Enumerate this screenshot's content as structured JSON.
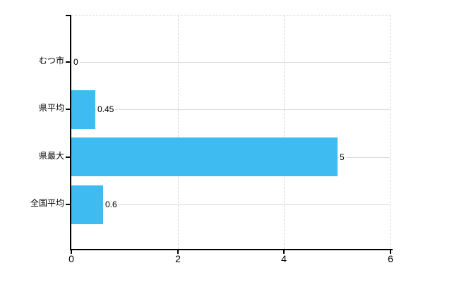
{
  "chart_data": {
    "type": "bar",
    "orientation": "horizontal",
    "title": "",
    "xlabel": "",
    "ylabel": "",
    "legend": "none",
    "grid": "on",
    "categories": [
      "むつ市",
      "県平均",
      "県最大",
      "全国平均"
    ],
    "values": [
      0,
      0.45,
      5,
      0.6
    ],
    "value_labels": [
      "0",
      "0.45",
      "5",
      "0.6"
    ],
    "x_ticks": [
      0,
      2,
      4,
      6
    ],
    "x_tick_labels": [
      "0",
      "2",
      "4",
      "6"
    ],
    "xlim": [
      0,
      6
    ],
    "bar_color": "#3EBCF2",
    "grid_color": "#D9D9D9",
    "axis_color": "#000000",
    "text_color": "#000000",
    "background_color": "#FFFFFF"
  }
}
